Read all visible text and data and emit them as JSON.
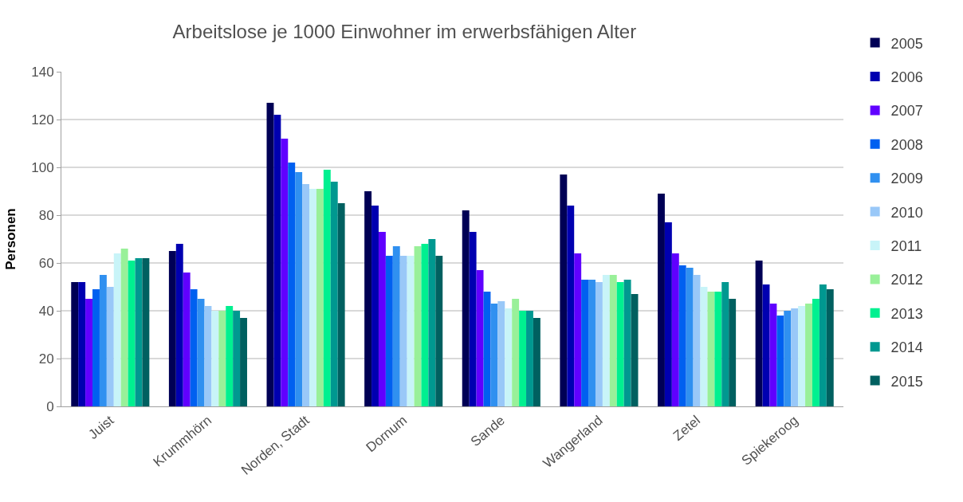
{
  "chart_data": {
    "type": "bar",
    "title": "Arbeitslose je 1000 Einwohner im erwerbsfähigen Alter",
    "ylabel": "Personen",
    "categories": [
      "Juist",
      "Krummhörn",
      "Norden, Stadt",
      "Dornum",
      "Sande",
      "Wangerland",
      "Zetel",
      "Spiekeroog"
    ],
    "series": [
      {
        "name": "2005",
        "color": "#000055",
        "values": [
          52,
          65,
          127,
          90,
          82,
          97,
          89,
          61
        ]
      },
      {
        "name": "2006",
        "color": "#0000b0",
        "values": [
          52,
          68,
          122,
          84,
          73,
          84,
          77,
          51
        ]
      },
      {
        "name": "2007",
        "color": "#6000ff",
        "values": [
          45,
          56,
          112,
          73,
          57,
          64,
          64,
          43
        ]
      },
      {
        "name": "2008",
        "color": "#0060f0",
        "values": [
          49,
          49,
          102,
          63,
          48,
          53,
          59,
          38
        ]
      },
      {
        "name": "2009",
        "color": "#3090f0",
        "values": [
          55,
          45,
          98,
          67,
          43,
          53,
          58,
          40
        ]
      },
      {
        "name": "2010",
        "color": "#99c8f8",
        "values": [
          50,
          42,
          93,
          63,
          44,
          52,
          55,
          41
        ]
      },
      {
        "name": "2011",
        "color": "#c8f4f8",
        "values": [
          64,
          40,
          91,
          63,
          41,
          55,
          50,
          42
        ]
      },
      {
        "name": "2012",
        "color": "#99f099",
        "values": [
          66,
          40,
          91,
          67,
          45,
          55,
          48,
          43
        ]
      },
      {
        "name": "2013",
        "color": "#00f090",
        "values": [
          61,
          42,
          99,
          68,
          40,
          52,
          48,
          45
        ]
      },
      {
        "name": "2014",
        "color": "#009890",
        "values": [
          62,
          40,
          94,
          70,
          40,
          53,
          52,
          51
        ]
      },
      {
        "name": "2015",
        "color": "#006060",
        "values": [
          62,
          37,
          85,
          63,
          37,
          47,
          45,
          49
        ]
      }
    ],
    "ylim": [
      0,
      140
    ],
    "yticks": [
      0,
      20,
      40,
      60,
      80,
      100,
      120,
      140
    ],
    "grid": "y",
    "legend": "right"
  }
}
